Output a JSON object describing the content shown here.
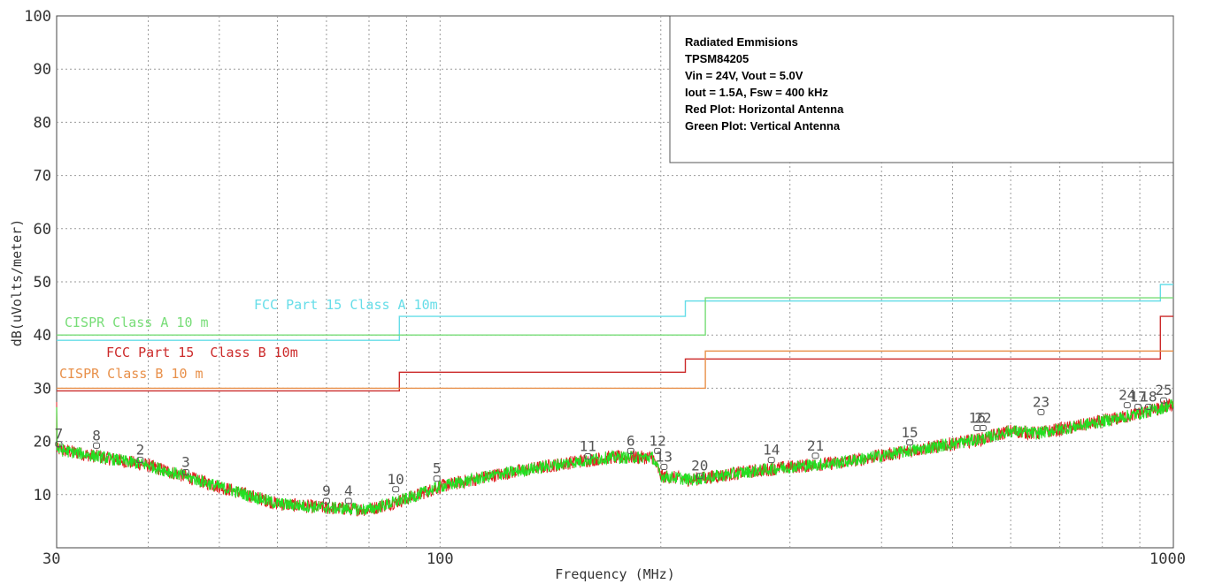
{
  "chart_data": {
    "type": "line",
    "xlabel": "Frequency (MHz)",
    "ylabel": "dB(uVolts/meter)",
    "x_scale": "log",
    "xlim": [
      30,
      1000
    ],
    "ylim": [
      0,
      100
    ],
    "x_ticks": [
      "30",
      "100",
      "1000"
    ],
    "y_ticks": [
      "10",
      "20",
      "30",
      "40",
      "50",
      "60",
      "70",
      "80",
      "90",
      "100"
    ],
    "grid": true,
    "annotation_box": {
      "lines": [
        "Radiated Emmisions",
        "TPSM84205",
        "Vin = 24V, Vout = 5.0V",
        "Iout = 1.5A, Fsw = 400 kHz",
        "Red Plot: Horizontal Antenna",
        "Green Plot: Vertical Antenna"
      ],
      "placement": "top-right"
    },
    "limit_lines": [
      {
        "name": "FCC Part 15 Class A 10m",
        "color": "#66dde8",
        "points": [
          [
            30,
            39
          ],
          [
            88,
            39
          ],
          [
            88,
            43.5
          ],
          [
            216,
            43.5
          ],
          [
            216,
            46.4
          ],
          [
            960,
            46.4
          ],
          [
            960,
            49.5
          ],
          [
            1000,
            49.5
          ]
        ]
      },
      {
        "name": "CISPR Class A 10 m",
        "color": "#77dd77",
        "points": [
          [
            30,
            40
          ],
          [
            230,
            40
          ],
          [
            230,
            47
          ],
          [
            1000,
            47
          ]
        ]
      },
      {
        "name": "FCC Part 15  Class B 10m",
        "color": "#cc2a2a",
        "points": [
          [
            30,
            29.5
          ],
          [
            88,
            29.5
          ],
          [
            88,
            33
          ],
          [
            216,
            33
          ],
          [
            216,
            35.5
          ],
          [
            960,
            35.5
          ],
          [
            960,
            43.5
          ],
          [
            1000,
            43.5
          ]
        ]
      },
      {
        "name": "CISPR Class B 10 m",
        "color": "#e8904a",
        "points": [
          [
            30,
            30
          ],
          [
            230,
            30
          ],
          [
            230,
            37
          ],
          [
            1000,
            37
          ]
        ]
      }
    ],
    "series": [
      {
        "name": "Red Plot: Horizontal Antenna",
        "color": "#e02020"
      },
      {
        "name": "Green Plot: Vertical Antenna",
        "color": "#22e022"
      }
    ],
    "trend": [
      [
        30,
        18.5
      ],
      [
        40,
        15.5
      ],
      [
        50,
        11.5
      ],
      [
        60,
        8.3
      ],
      [
        70,
        7.5
      ],
      [
        80,
        7.2
      ],
      [
        90,
        9.2
      ],
      [
        100,
        11.5
      ],
      [
        120,
        13.8
      ],
      [
        150,
        16.0
      ],
      [
        170,
        17.0
      ],
      [
        195,
        17.0
      ],
      [
        200,
        13.5
      ],
      [
        220,
        12.8
      ],
      [
        260,
        14.2
      ],
      [
        300,
        15.2
      ],
      [
        350,
        16.0
      ],
      [
        450,
        18.5
      ],
      [
        550,
        20.5
      ],
      [
        600,
        22.0
      ],
      [
        650,
        21.5
      ],
      [
        750,
        23.0
      ],
      [
        850,
        24.5
      ],
      [
        950,
        26.0
      ],
      [
        1000,
        27.0
      ]
    ],
    "markers": [
      {
        "label": "7",
        "x": 30.2,
        "y": 19.5
      },
      {
        "label": "8",
        "x": 34,
        "y": 19.2
      },
      {
        "label": "2",
        "x": 39,
        "y": 16.5
      },
      {
        "label": "3",
        "x": 45,
        "y": 14.2
      },
      {
        "label": "9",
        "x": 70,
        "y": 8.8
      },
      {
        "label": "4",
        "x": 75,
        "y": 8.8
      },
      {
        "label": "10",
        "x": 87,
        "y": 11.0
      },
      {
        "label": "5",
        "x": 99,
        "y": 13.0
      },
      {
        "label": "11",
        "x": 159,
        "y": 17.2
      },
      {
        "label": "6",
        "x": 182,
        "y": 18.2
      },
      {
        "label": "12",
        "x": 198,
        "y": 18.2
      },
      {
        "label": "13",
        "x": 202,
        "y": 15.2
      },
      {
        "label": "20",
        "x": 226,
        "y": 13.5
      },
      {
        "label": "14",
        "x": 283,
        "y": 16.5
      },
      {
        "label": "21",
        "x": 325,
        "y": 17.3
      },
      {
        "label": "15",
        "x": 437,
        "y": 19.8
      },
      {
        "label": "16",
        "x": 540,
        "y": 22.5
      },
      {
        "label": "22",
        "x": 550,
        "y": 22.5
      },
      {
        "label": "23",
        "x": 660,
        "y": 25.5
      },
      {
        "label": "24",
        "x": 865,
        "y": 26.8
      },
      {
        "label": "17",
        "x": 895,
        "y": 26.5
      },
      {
        "label": "18",
        "x": 925,
        "y": 26.5
      },
      {
        "label": "25",
        "x": 970,
        "y": 27.7
      }
    ]
  }
}
